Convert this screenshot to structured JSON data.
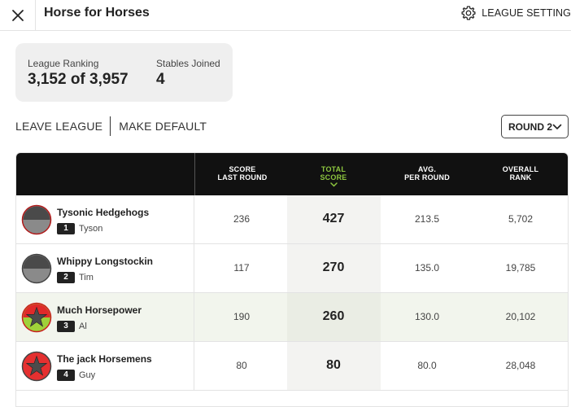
{
  "header": {
    "title": "Horse for Horses",
    "settings_label": "LEAGUE SETTING"
  },
  "stats": {
    "ranking_label": "League Ranking",
    "ranking_value": "3,152 of 3,957",
    "stables_label": "Stables Joined",
    "stables_value": "4"
  },
  "actions": {
    "leave": "LEAVE LEAGUE",
    "make_default": "MAKE DEFAULT"
  },
  "round_select": {
    "selected": "ROUND 2"
  },
  "table": {
    "columns": [
      {
        "line1": "SCORE",
        "line2": "LAST ROUND"
      },
      {
        "line1": "TOTAL",
        "line2": "SCORE"
      },
      {
        "line1": "AVG.",
        "line2": "PER ROUND"
      },
      {
        "line1": "OVERALL",
        "line2": "RANK"
      }
    ],
    "rows": [
      {
        "name": "Tysonic Hedgehogs",
        "rank": "1",
        "owner": "Tyson",
        "last_round": "236",
        "total": "427",
        "avg": "213.5",
        "overall": "5,702"
      },
      {
        "name": "Whippy Longstockin",
        "rank": "2",
        "owner": "Tim",
        "last_round": "117",
        "total": "270",
        "avg": "135.0",
        "overall": "19,785"
      },
      {
        "name": "Much Horsepower",
        "rank": "3",
        "owner": "Al",
        "last_round": "190",
        "total": "260",
        "avg": "130.0",
        "overall": "20,102"
      },
      {
        "name": "The jack Horsemens",
        "rank": "4",
        "owner": "Guy",
        "last_round": "80",
        "total": "80",
        "avg": "80.0",
        "overall": "28,048"
      }
    ]
  },
  "colors": {
    "accent": "#8dc63f",
    "header_bg": "#111111",
    "highlight_row": "#f2f5ed"
  },
  "icons": {
    "close": "close-icon",
    "settings": "gear-icon",
    "dropdown": "chevron-down-icon",
    "sort": "chevron-down-icon"
  }
}
